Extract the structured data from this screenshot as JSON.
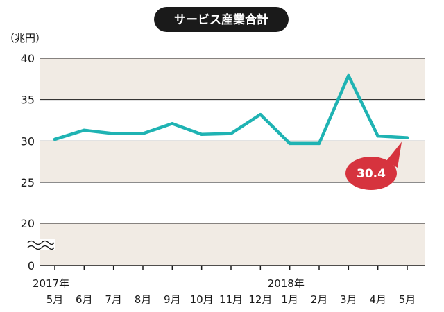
{
  "chart_data": {
    "type": "line",
    "title": "サービス産業合計",
    "ylabel": "（兆円）",
    "xlabel": "",
    "ylim": [
      0,
      40
    ],
    "yticks": [
      "0",
      "20",
      "25",
      "30",
      "35",
      "40"
    ],
    "axis_break": true,
    "year_labels": [
      "2017年",
      "2018年"
    ],
    "categories": [
      "5月",
      "6月",
      "7月",
      "8月",
      "9月",
      "10月",
      "11月",
      "12月",
      "1月",
      "2月",
      "3月",
      "4月",
      "5月"
    ],
    "series": [
      {
        "name": "サービス産業合計",
        "values": [
          30.2,
          31.3,
          30.9,
          30.9,
          32.1,
          30.8,
          30.9,
          33.2,
          29.7,
          29.7,
          37.9,
          30.6,
          30.4
        ]
      }
    ],
    "annotation": {
      "label": "30.4",
      "category": "5月"
    },
    "colors": {
      "line": "#1fb3b3",
      "band": "#f1ebe4",
      "callout": "#d6333e",
      "title_bg": "#1a1a1a"
    }
  }
}
